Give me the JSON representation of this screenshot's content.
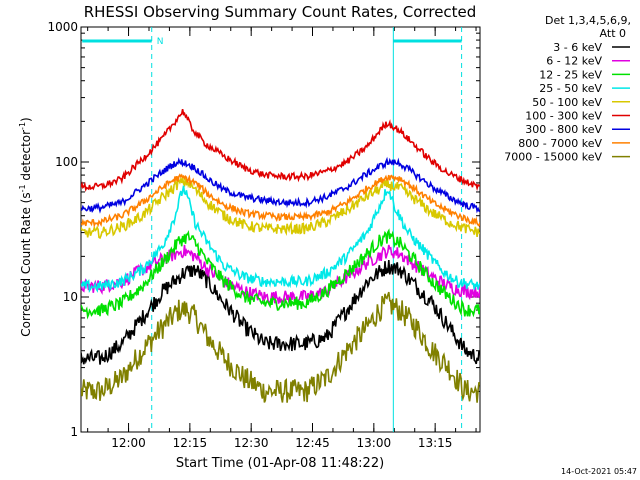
{
  "chart_data": {
    "type": "line",
    "title": "RHESSI Observing Summary Count Rates, Corrected",
    "ylabel_main": "Corrected Count Rate (s",
    "ylabel_sup1": "-1",
    "ylabel_mid": " detector",
    "ylabel_sup2": "-1",
    "ylabel_end": ")",
    "xlabel": "Start Time (01-Apr-08 11:48:22)",
    "x_unit": "minutes after 11:48:22 (UT)",
    "xlim": [
      0,
      97.6
    ],
    "ylim": [
      1,
      1000
    ],
    "y_scale": "log",
    "x_ticks": [
      {
        "label": "12:00",
        "value": 11.63
      },
      {
        "label": "12:15",
        "value": 26.63
      },
      {
        "label": "12:30",
        "value": 41.63
      },
      {
        "label": "12:45",
        "value": 56.63
      },
      {
        "label": "13:00",
        "value": 71.63
      },
      {
        "label": "13:15",
        "value": 86.63
      }
    ],
    "y_ticks": [
      {
        "label": "1",
        "value": 1
      },
      {
        "label": "10",
        "value": 10
      },
      {
        "label": "100",
        "value": 100
      },
      {
        "label": "1000",
        "value": 1000
      }
    ],
    "legend_header": [
      "Det 1,3,4,5,6,9,",
      "Att 0"
    ],
    "legend_placement": "right",
    "annotation": "N",
    "night_markers": [
      17.3,
      76.4,
      93.1
    ],
    "night_bars": [
      {
        "from": 0.3,
        "to": 17.3
      },
      {
        "from": 76.4,
        "to": 93.1
      }
    ],
    "series": [
      {
        "name": "3 - 6 keV",
        "color": "#000000",
        "noise": 0.06,
        "points": [
          [
            0,
            3.5
          ],
          [
            5,
            3.5
          ],
          [
            10,
            4.5
          ],
          [
            15,
            7
          ],
          [
            20,
            11
          ],
          [
            25,
            15
          ],
          [
            28,
            16
          ],
          [
            31,
            13
          ],
          [
            35,
            9
          ],
          [
            40,
            6
          ],
          [
            45,
            4.5
          ],
          [
            50,
            4.5
          ],
          [
            55,
            4.5
          ],
          [
            60,
            5
          ],
          [
            65,
            8
          ],
          [
            70,
            13
          ],
          [
            75,
            17
          ],
          [
            78,
            16
          ],
          [
            82,
            12
          ],
          [
            86,
            9
          ],
          [
            90,
            6
          ],
          [
            94,
            4
          ],
          [
            97.6,
            3.5
          ]
        ]
      },
      {
        "name": "6 - 12 keV",
        "color": "#e000e0",
        "noise": 0.05,
        "points": [
          [
            0,
            12
          ],
          [
            5,
            12
          ],
          [
            10,
            13
          ],
          [
            15,
            16
          ],
          [
            20,
            19
          ],
          [
            25,
            22
          ],
          [
            28,
            20
          ],
          [
            31,
            16
          ],
          [
            35,
            13
          ],
          [
            40,
            11
          ],
          [
            45,
            10
          ],
          [
            50,
            10
          ],
          [
            55,
            10
          ],
          [
            60,
            11
          ],
          [
            65,
            14
          ],
          [
            70,
            18
          ],
          [
            75,
            22
          ],
          [
            78,
            21
          ],
          [
            82,
            17
          ],
          [
            86,
            14
          ],
          [
            90,
            12
          ],
          [
            94,
            11
          ],
          [
            97.6,
            11
          ]
        ]
      },
      {
        "name": "12 - 25 keV",
        "color": "#00e000",
        "noise": 0.05,
        "points": [
          [
            0,
            8
          ],
          [
            5,
            8
          ],
          [
            10,
            9
          ],
          [
            15,
            12
          ],
          [
            20,
            18
          ],
          [
            24,
            26
          ],
          [
            26,
            28
          ],
          [
            28,
            25
          ],
          [
            31,
            18
          ],
          [
            35,
            13
          ],
          [
            40,
            10
          ],
          [
            45,
            9
          ],
          [
            50,
            9
          ],
          [
            55,
            9
          ],
          [
            60,
            11
          ],
          [
            65,
            15
          ],
          [
            70,
            21
          ],
          [
            73,
            26
          ],
          [
            75,
            28
          ],
          [
            78,
            25
          ],
          [
            82,
            18
          ],
          [
            86,
            13
          ],
          [
            90,
            10
          ],
          [
            94,
            8
          ],
          [
            97.6,
            8
          ]
        ]
      },
      {
        "name": "25 - 50 keV",
        "color": "#00e8e8",
        "noise": 0.04,
        "points": [
          [
            0,
            12
          ],
          [
            5,
            12
          ],
          [
            10,
            13
          ],
          [
            15,
            16
          ],
          [
            20,
            24
          ],
          [
            23,
            40
          ],
          [
            25,
            65
          ],
          [
            26,
            55
          ],
          [
            28,
            35
          ],
          [
            31,
            25
          ],
          [
            35,
            17
          ],
          [
            40,
            14
          ],
          [
            45,
            13
          ],
          [
            50,
            13
          ],
          [
            55,
            13
          ],
          [
            60,
            15
          ],
          [
            65,
            20
          ],
          [
            70,
            30
          ],
          [
            74,
            55
          ],
          [
            75,
            65
          ],
          [
            77,
            45
          ],
          [
            80,
            30
          ],
          [
            84,
            22
          ],
          [
            88,
            16
          ],
          [
            92,
            13
          ],
          [
            97.6,
            12
          ]
        ]
      },
      {
        "name": "50 - 100 keV",
        "color": "#d8c800",
        "noise": 0.04,
        "points": [
          [
            0,
            30
          ],
          [
            5,
            30
          ],
          [
            10,
            33
          ],
          [
            15,
            40
          ],
          [
            20,
            55
          ],
          [
            24,
            70
          ],
          [
            26,
            72
          ],
          [
            28,
            62
          ],
          [
            31,
            50
          ],
          [
            35,
            40
          ],
          [
            40,
            34
          ],
          [
            45,
            32
          ],
          [
            50,
            32
          ],
          [
            55,
            32
          ],
          [
            60,
            36
          ],
          [
            65,
            44
          ],
          [
            70,
            56
          ],
          [
            75,
            68
          ],
          [
            78,
            64
          ],
          [
            82,
            52
          ],
          [
            86,
            42
          ],
          [
            90,
            36
          ],
          [
            94,
            32
          ],
          [
            97.6,
            30
          ]
        ]
      },
      {
        "name": "100 - 300 keV",
        "color": "#e00000",
        "noise": 0.025,
        "points": [
          [
            0,
            65
          ],
          [
            5,
            66
          ],
          [
            10,
            75
          ],
          [
            15,
            105
          ],
          [
            20,
            150
          ],
          [
            23,
            200
          ],
          [
            25,
            240
          ],
          [
            27,
            180
          ],
          [
            30,
            140
          ],
          [
            35,
            110
          ],
          [
            40,
            90
          ],
          [
            45,
            80
          ],
          [
            50,
            78
          ],
          [
            55,
            78
          ],
          [
            60,
            85
          ],
          [
            65,
            100
          ],
          [
            70,
            130
          ],
          [
            73,
            170
          ],
          [
            75,
            195
          ],
          [
            78,
            170
          ],
          [
            82,
            130
          ],
          [
            86,
            100
          ],
          [
            90,
            82
          ],
          [
            94,
            72
          ],
          [
            97.6,
            65
          ]
        ]
      },
      {
        "name": "300 - 800 keV",
        "color": "#0000e0",
        "noise": 0.025,
        "points": [
          [
            0,
            45
          ],
          [
            5,
            46
          ],
          [
            10,
            50
          ],
          [
            15,
            65
          ],
          [
            20,
            85
          ],
          [
            23,
            98
          ],
          [
            25,
            100
          ],
          [
            28,
            90
          ],
          [
            31,
            75
          ],
          [
            35,
            62
          ],
          [
            40,
            55
          ],
          [
            45,
            52
          ],
          [
            50,
            50
          ],
          [
            55,
            50
          ],
          [
            60,
            55
          ],
          [
            65,
            65
          ],
          [
            70,
            82
          ],
          [
            75,
            100
          ],
          [
            78,
            98
          ],
          [
            82,
            80
          ],
          [
            86,
            65
          ],
          [
            90,
            55
          ],
          [
            94,
            48
          ],
          [
            97.6,
            45
          ]
        ]
      },
      {
        "name": "800 - 7000 keV",
        "color": "#ff8000",
        "noise": 0.025,
        "points": [
          [
            0,
            35
          ],
          [
            5,
            36
          ],
          [
            10,
            40
          ],
          [
            15,
            50
          ],
          [
            20,
            65
          ],
          [
            23,
            75
          ],
          [
            25,
            77
          ],
          [
            28,
            70
          ],
          [
            31,
            58
          ],
          [
            35,
            48
          ],
          [
            40,
            42
          ],
          [
            45,
            40
          ],
          [
            50,
            39
          ],
          [
            55,
            39
          ],
          [
            60,
            42
          ],
          [
            65,
            50
          ],
          [
            70,
            64
          ],
          [
            75,
            78
          ],
          [
            78,
            76
          ],
          [
            82,
            62
          ],
          [
            86,
            50
          ],
          [
            90,
            43
          ],
          [
            94,
            38
          ],
          [
            97.6,
            35
          ]
        ]
      },
      {
        "name": "7000 - 15000 keV",
        "color": "#808000",
        "noise": 0.09,
        "points": [
          [
            0,
            2
          ],
          [
            5,
            2
          ],
          [
            10,
            2.5
          ],
          [
            15,
            4
          ],
          [
            20,
            6
          ],
          [
            24,
            8
          ],
          [
            26,
            8
          ],
          [
            28,
            7
          ],
          [
            31,
            5
          ],
          [
            35,
            3.5
          ],
          [
            40,
            2.5
          ],
          [
            45,
            2
          ],
          [
            50,
            2
          ],
          [
            55,
            2
          ],
          [
            60,
            2.5
          ],
          [
            65,
            4
          ],
          [
            70,
            6
          ],
          [
            73,
            8
          ],
          [
            75,
            9
          ],
          [
            78,
            8
          ],
          [
            82,
            6
          ],
          [
            86,
            4
          ],
          [
            90,
            3
          ],
          [
            94,
            2
          ],
          [
            97.6,
            2
          ]
        ]
      }
    ]
  },
  "footer": {
    "timestamp": "14-Oct-2021 05:47"
  },
  "colors": {
    "axis": "#000000",
    "night_marker": "#00e0e0",
    "background": "#ffffff"
  }
}
